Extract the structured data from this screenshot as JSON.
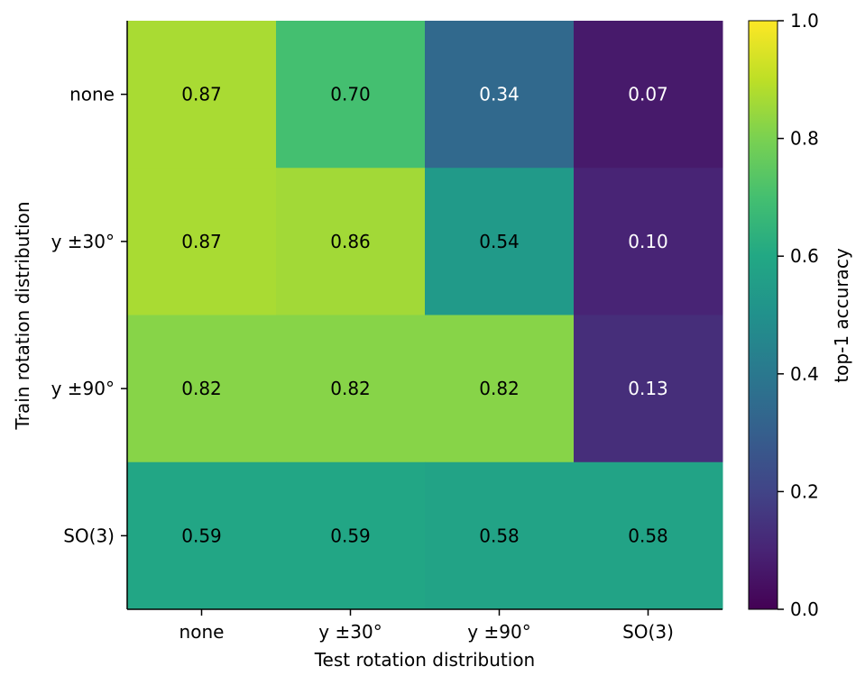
{
  "chart_data": {
    "type": "heatmap",
    "x_categories": [
      "none",
      "y ±30°",
      "y ±90°",
      "SO(3)"
    ],
    "y_categories": [
      "none",
      "y ±30°",
      "y ±90°",
      "SO(3)"
    ],
    "values": [
      [
        0.87,
        0.7,
        0.34,
        0.07
      ],
      [
        0.87,
        0.86,
        0.54,
        0.1
      ],
      [
        0.82,
        0.82,
        0.82,
        0.13
      ],
      [
        0.59,
        0.59,
        0.58,
        0.58
      ]
    ],
    "value_labels": [
      [
        "0.87",
        "0.70",
        "0.34",
        "0.07"
      ],
      [
        "0.87",
        "0.86",
        "0.54",
        "0.10"
      ],
      [
        "0.82",
        "0.82",
        "0.82",
        "0.13"
      ],
      [
        "0.59",
        "0.59",
        "0.58",
        "0.58"
      ]
    ],
    "xlabel": "Test rotation distribution",
    "ylabel": "Train rotation distribution",
    "colorbar": {
      "label": "top-1 accuracy",
      "range": [
        0.0,
        1.0
      ],
      "ticks": [
        "0.0",
        "0.2",
        "0.4",
        "0.6",
        "0.8",
        "1.0"
      ],
      "colormap": "viridis"
    }
  }
}
